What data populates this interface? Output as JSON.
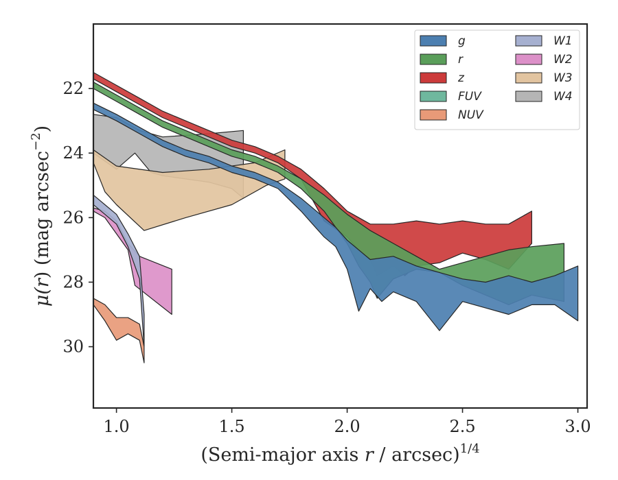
{
  "chart_data": {
    "type": "area",
    "xlabel": {
      "main": "(Semi-major axis ",
      "var": "r",
      "unit": " / arcsec)",
      "sup": "1/4"
    },
    "ylabel": {
      "main": "μ(",
      "var": "r",
      "unit": ") (mag arcsec",
      "sup": "−2",
      "end": ")"
    },
    "xlim": [
      0.9,
      3.04
    ],
    "ylim": [
      31.9,
      20.0
    ],
    "y_inverted": true,
    "xticks": [
      1.0,
      1.5,
      2.0,
      2.5,
      3.0
    ],
    "xtick_labels": [
      "1.0",
      "1.5",
      "2.0",
      "2.5",
      "3.0"
    ],
    "yticks": [
      22,
      24,
      26,
      28,
      30
    ],
    "ytick_labels": [
      "22",
      "24",
      "26",
      "28",
      "30"
    ],
    "legend_position": "top-right",
    "legend_columns": 2,
    "series": [
      {
        "name": "g",
        "color": "#4c7fb0",
        "upper": [
          [
            0.9,
            22.45
          ],
          [
            1.0,
            22.8
          ],
          [
            1.1,
            23.2
          ],
          [
            1.2,
            23.6
          ],
          [
            1.3,
            23.9
          ],
          [
            1.4,
            24.1
          ],
          [
            1.5,
            24.4
          ],
          [
            1.6,
            24.6
          ],
          [
            1.7,
            24.9
          ],
          [
            1.8,
            25.4
          ],
          [
            1.85,
            25.7
          ],
          [
            1.9,
            26.0
          ],
          [
            1.95,
            26.3
          ],
          [
            2.0,
            26.7
          ],
          [
            2.05,
            27.0
          ],
          [
            2.1,
            27.3
          ],
          [
            2.2,
            27.2
          ],
          [
            2.3,
            27.5
          ],
          [
            2.4,
            27.7
          ],
          [
            2.5,
            27.9
          ],
          [
            2.6,
            28.0
          ],
          [
            2.7,
            27.8
          ],
          [
            2.8,
            28.0
          ],
          [
            2.9,
            27.8
          ],
          [
            3.0,
            27.5
          ]
        ],
        "lower": [
          [
            0.9,
            22.65
          ],
          [
            1.0,
            23.0
          ],
          [
            1.1,
            23.4
          ],
          [
            1.2,
            23.8
          ],
          [
            1.3,
            24.1
          ],
          [
            1.4,
            24.3
          ],
          [
            1.5,
            24.6
          ],
          [
            1.6,
            24.8
          ],
          [
            1.7,
            25.1
          ],
          [
            1.8,
            25.8
          ],
          [
            1.85,
            26.2
          ],
          [
            1.9,
            26.6
          ],
          [
            1.95,
            26.9
          ],
          [
            2.0,
            27.6
          ],
          [
            2.05,
            28.9
          ],
          [
            2.1,
            28.2
          ],
          [
            2.15,
            28.6
          ],
          [
            2.2,
            28.3
          ],
          [
            2.3,
            28.6
          ],
          [
            2.4,
            29.5
          ],
          [
            2.5,
            28.6
          ],
          [
            2.6,
            28.8
          ],
          [
            2.7,
            29.0
          ],
          [
            2.8,
            28.7
          ],
          [
            2.9,
            28.7
          ],
          [
            3.0,
            29.2
          ]
        ]
      },
      {
        "name": "r",
        "color": "#5a9e5a",
        "upper": [
          [
            0.9,
            21.8
          ],
          [
            1.0,
            22.2
          ],
          [
            1.1,
            22.6
          ],
          [
            1.2,
            23.0
          ],
          [
            1.3,
            23.3
          ],
          [
            1.4,
            23.6
          ],
          [
            1.5,
            23.9
          ],
          [
            1.6,
            24.1
          ],
          [
            1.7,
            24.4
          ],
          [
            1.8,
            24.8
          ],
          [
            1.9,
            25.3
          ],
          [
            2.0,
            25.9
          ],
          [
            2.1,
            26.4
          ],
          [
            2.2,
            26.8
          ],
          [
            2.3,
            27.2
          ],
          [
            2.4,
            27.6
          ],
          [
            2.5,
            27.4
          ],
          [
            2.6,
            27.2
          ],
          [
            2.7,
            27.0
          ],
          [
            2.8,
            26.9
          ],
          [
            2.94,
            26.8
          ]
        ],
        "lower": [
          [
            0.9,
            22.0
          ],
          [
            1.0,
            22.4
          ],
          [
            1.1,
            22.8
          ],
          [
            1.2,
            23.2
          ],
          [
            1.3,
            23.5
          ],
          [
            1.4,
            23.8
          ],
          [
            1.5,
            24.1
          ],
          [
            1.6,
            24.3
          ],
          [
            1.7,
            24.6
          ],
          [
            1.8,
            25.1
          ],
          [
            1.9,
            25.8
          ],
          [
            2.0,
            26.8
          ],
          [
            2.05,
            27.5
          ],
          [
            2.1,
            28.0
          ],
          [
            2.13,
            28.5
          ],
          [
            2.2,
            27.9
          ],
          [
            2.3,
            27.6
          ],
          [
            2.4,
            27.7
          ],
          [
            2.5,
            28.1
          ],
          [
            2.6,
            28.4
          ],
          [
            2.7,
            28.7
          ],
          [
            2.8,
            28.4
          ],
          [
            2.94,
            28.6
          ]
        ]
      },
      {
        "name": "z",
        "color": "#cc3b3b",
        "upper": [
          [
            0.9,
            21.5
          ],
          [
            1.0,
            21.9
          ],
          [
            1.1,
            22.3
          ],
          [
            1.2,
            22.7
          ],
          [
            1.3,
            23.0
          ],
          [
            1.4,
            23.3
          ],
          [
            1.5,
            23.6
          ],
          [
            1.6,
            23.8
          ],
          [
            1.7,
            24.1
          ],
          [
            1.8,
            24.5
          ],
          [
            1.9,
            25.1
          ],
          [
            2.0,
            25.8
          ],
          [
            2.1,
            26.2
          ],
          [
            2.2,
            26.2
          ],
          [
            2.3,
            26.1
          ],
          [
            2.4,
            26.2
          ],
          [
            2.5,
            26.1
          ],
          [
            2.6,
            26.2
          ],
          [
            2.7,
            26.2
          ],
          [
            2.8,
            25.8
          ]
        ],
        "lower": [
          [
            0.9,
            21.7
          ],
          [
            1.0,
            22.1
          ],
          [
            1.1,
            22.5
          ],
          [
            1.2,
            22.9
          ],
          [
            1.3,
            23.2
          ],
          [
            1.4,
            23.5
          ],
          [
            1.5,
            23.8
          ],
          [
            1.6,
            24.0
          ],
          [
            1.7,
            24.3
          ],
          [
            1.8,
            24.8
          ],
          [
            1.9,
            26.1
          ],
          [
            2.0,
            26.6
          ],
          [
            2.05,
            27.0
          ],
          [
            2.1,
            27.3
          ],
          [
            2.13,
            27.8
          ],
          [
            2.2,
            27.5
          ],
          [
            2.25,
            27.8
          ],
          [
            2.3,
            27.5
          ],
          [
            2.4,
            27.4
          ],
          [
            2.5,
            27.1
          ],
          [
            2.6,
            27.3
          ],
          [
            2.7,
            27.6
          ],
          [
            2.8,
            26.8
          ]
        ]
      },
      {
        "name": "FUV",
        "color": "#6fb89e",
        "upper": [],
        "lower": []
      },
      {
        "name": "NUV",
        "color": "#e89a78",
        "upper": [
          [
            0.9,
            28.5
          ],
          [
            0.95,
            28.7
          ],
          [
            1.0,
            29.1
          ],
          [
            1.05,
            29.1
          ],
          [
            1.1,
            29.3
          ],
          [
            1.12,
            30.0
          ]
        ],
        "lower": [
          [
            0.9,
            28.7
          ],
          [
            0.95,
            29.2
          ],
          [
            1.0,
            29.8
          ],
          [
            1.05,
            29.6
          ],
          [
            1.1,
            29.8
          ],
          [
            1.12,
            30.5
          ]
        ]
      },
      {
        "name": "W1",
        "color": "#a6b0d0",
        "upper": [
          [
            0.9,
            25.3
          ],
          [
            0.95,
            25.6
          ],
          [
            1.0,
            25.9
          ],
          [
            1.05,
            26.5
          ],
          [
            1.1,
            27.2
          ],
          [
            1.12,
            29.0
          ]
        ],
        "lower": [
          [
            0.9,
            25.6
          ],
          [
            0.95,
            25.9
          ],
          [
            1.0,
            26.2
          ],
          [
            1.05,
            26.9
          ],
          [
            1.1,
            27.9
          ],
          [
            1.12,
            30.0
          ]
        ]
      },
      {
        "name": "W2",
        "color": "#dc90c8",
        "upper": [
          [
            0.9,
            25.7
          ],
          [
            0.95,
            25.8
          ],
          [
            1.0,
            26.1
          ],
          [
            1.05,
            26.8
          ],
          [
            1.1,
            27.2
          ],
          [
            1.24,
            27.6
          ]
        ],
        "lower": [
          [
            0.9,
            25.8
          ],
          [
            0.95,
            26.0
          ],
          [
            1.0,
            26.5
          ],
          [
            1.05,
            27.0
          ],
          [
            1.08,
            28.1
          ],
          [
            1.24,
            29.0
          ]
        ]
      },
      {
        "name": "W3",
        "color": "#e2c4a0",
        "upper": [
          [
            0.9,
            23.9
          ],
          [
            1.0,
            24.4
          ],
          [
            1.2,
            24.6
          ],
          [
            1.4,
            24.5
          ],
          [
            1.6,
            24.3
          ],
          [
            1.73,
            23.9
          ]
        ],
        "lower": [
          [
            0.9,
            24.3
          ],
          [
            0.95,
            25.2
          ],
          [
            1.0,
            25.6
          ],
          [
            1.12,
            26.4
          ],
          [
            1.3,
            26.0
          ],
          [
            1.5,
            25.6
          ],
          [
            1.65,
            25.0
          ],
          [
            1.73,
            24.8
          ]
        ]
      },
      {
        "name": "W4",
        "color": "#b5b5b5",
        "upper": [
          [
            0.9,
            22.8
          ],
          [
            1.0,
            22.9
          ],
          [
            1.1,
            23.3
          ],
          [
            1.2,
            23.5
          ],
          [
            1.4,
            23.4
          ],
          [
            1.55,
            23.3
          ]
        ],
        "lower": [
          [
            0.9,
            24.0
          ],
          [
            0.94,
            24.2
          ],
          [
            1.0,
            24.5
          ],
          [
            1.08,
            24.0
          ],
          [
            1.15,
            24.6
          ],
          [
            1.2,
            24.7
          ],
          [
            1.4,
            24.9
          ],
          [
            1.5,
            25.1
          ],
          [
            1.55,
            25.4
          ]
        ]
      }
    ]
  }
}
